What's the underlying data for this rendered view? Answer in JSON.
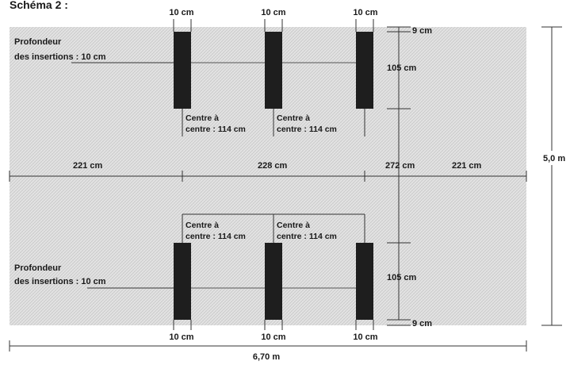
{
  "title": "Schéma 2 :",
  "top_widths": [
    "10 cm",
    "10 cm",
    "10 cm"
  ],
  "bottom_widths": [
    "10 cm",
    "10 cm",
    "10 cm"
  ],
  "top_depth": {
    "line1": "Profondeur",
    "line2": "des insertions : 10 cm"
  },
  "bottom_depth": {
    "line1": "Profondeur",
    "line2": "des insertions : 10 cm"
  },
  "top_center_labels": [
    {
      "line1": "Centre à",
      "line2": "centre : 114 cm"
    },
    {
      "line1": "Centre à",
      "line2": "centre : 114 cm"
    }
  ],
  "bottom_center_labels": [
    {
      "line1": "Centre à",
      "line2": "centre : 114 cm"
    },
    {
      "line1": "Centre à",
      "line2": "centre : 114 cm"
    }
  ],
  "horizontal_dims": {
    "left": "221 cm",
    "middle": "228 cm",
    "right": "221 cm"
  },
  "vertical_dims": {
    "top_margin": "9 cm",
    "top_post": "105 cm",
    "center": "272 cm",
    "bottom_post": "105 cm",
    "bottom_margin": "9 cm"
  },
  "total_height": "5,0 m",
  "total_width": "6,70 m",
  "colors": {
    "field": "#dcdcdc",
    "post": "#1e1e1e",
    "line": "#333333"
  }
}
